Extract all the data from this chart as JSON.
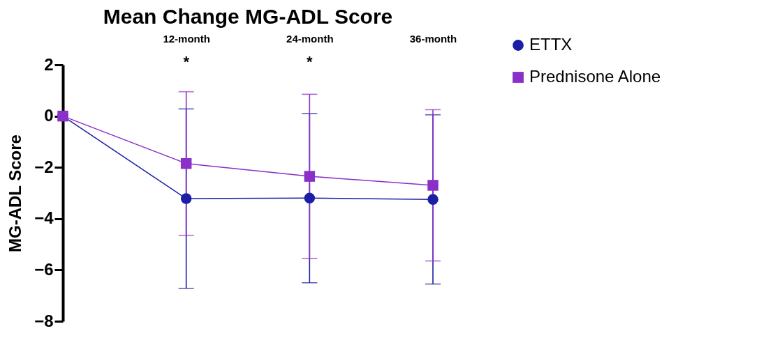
{
  "chart_data": {
    "type": "line",
    "title": "Mean Change MG-ADL Score",
    "ylabel": "MG-ADL Score",
    "categories": [
      null,
      "12-month",
      "24-month",
      "36-month"
    ],
    "series": [
      {
        "name": "ETTX",
        "color": "#1a1fa3",
        "marker": "circle",
        "values": [
          0,
          -3.22,
          -3.2,
          -3.25
        ],
        "errors": [
          null,
          3.5,
          3.3,
          3.3
        ]
      },
      {
        "name": "Prednisone Alone",
        "color": "#8a2fc8",
        "marker": "square",
        "values": [
          0,
          -1.85,
          -2.35,
          -2.7
        ],
        "errors": [
          null,
          2.8,
          3.2,
          2.95
        ]
      }
    ],
    "annotations": [
      "*",
      "*"
    ],
    "ylim": [
      -8,
      2
    ],
    "yticks": [
      -8,
      -6,
      -4,
      -2,
      0,
      2
    ],
    "grid": false,
    "legend": "top right"
  }
}
